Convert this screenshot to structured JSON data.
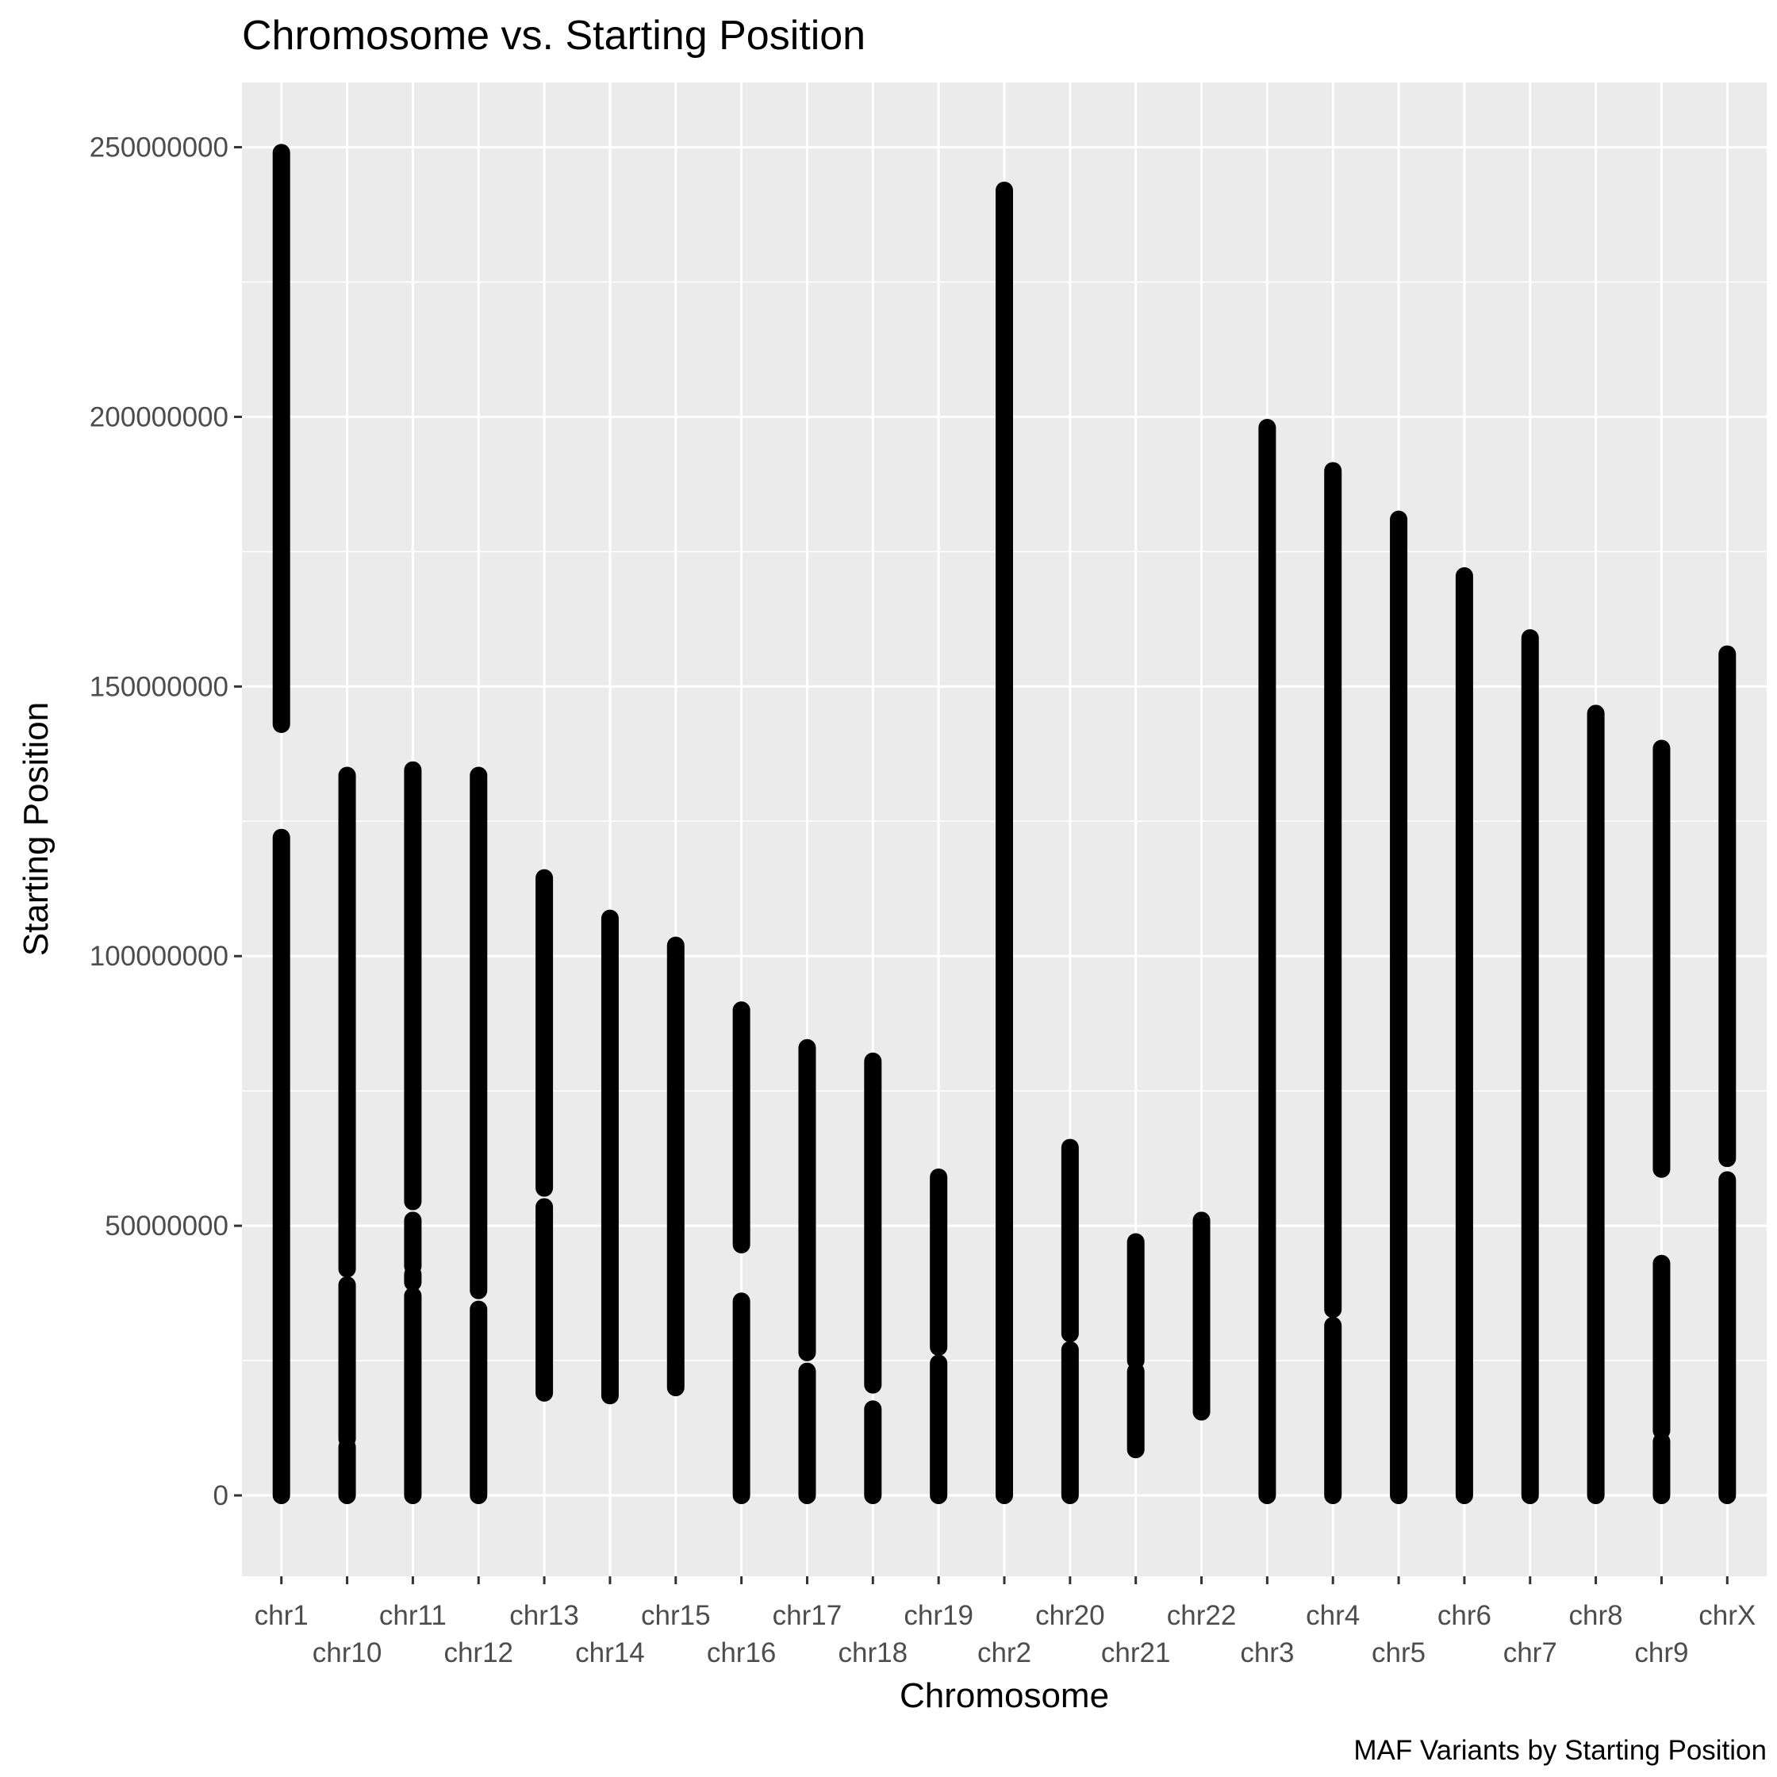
{
  "chart_data": {
    "type": "scatter",
    "title": "Chromosome vs. Starting Position",
    "xlabel": "Chromosome",
    "ylabel": "Starting Position",
    "caption": "MAF Variants by Starting Position",
    "categories": [
      "chr1",
      "chr10",
      "chr11",
      "chr12",
      "chr13",
      "chr14",
      "chr15",
      "chr16",
      "chr17",
      "chr18",
      "chr19",
      "chr2",
      "chr20",
      "chr21",
      "chr22",
      "chr3",
      "chr4",
      "chr5",
      "chr6",
      "chr7",
      "chr8",
      "chr9",
      "chrX"
    ],
    "y_ticks": [
      0,
      50000000,
      100000000,
      150000000,
      200000000,
      250000000
    ],
    "y_tick_labels": [
      "0",
      "50000000",
      "100000000",
      "150000000",
      "200000000",
      "250000000"
    ],
    "ylim": [
      -15000000,
      262000000
    ],
    "grid": true,
    "point_color": "#000000",
    "panel_color": "#ebebeb",
    "grid_color": "#ffffff",
    "series": [
      {
        "category": "chr1",
        "ranges": [
          [
            0,
            122000000
          ],
          [
            143000000,
            249000000
          ]
        ]
      },
      {
        "category": "chr10",
        "ranges": [
          [
            0,
            9000000
          ],
          [
            10500000,
            39000000
          ],
          [
            42000000,
            133500000
          ]
        ]
      },
      {
        "category": "chr11",
        "ranges": [
          [
            0,
            37000000
          ],
          [
            39500000,
            41000000
          ],
          [
            42500000,
            51000000
          ],
          [
            54500000,
            134500000
          ]
        ]
      },
      {
        "category": "chr12",
        "ranges": [
          [
            0,
            34500000
          ],
          [
            38000000,
            133500000
          ]
        ]
      },
      {
        "category": "chr13",
        "ranges": [
          [
            19000000,
            53500000
          ],
          [
            57000000,
            114500000
          ]
        ]
      },
      {
        "category": "chr14",
        "ranges": [
          [
            18500000,
            107000000
          ]
        ]
      },
      {
        "category": "chr15",
        "ranges": [
          [
            20000000,
            102000000
          ]
        ]
      },
      {
        "category": "chr16",
        "ranges": [
          [
            0,
            36000000
          ],
          [
            46500000,
            90000000
          ]
        ]
      },
      {
        "category": "chr17",
        "ranges": [
          [
            0,
            23000000
          ],
          [
            26500000,
            83000000
          ]
        ]
      },
      {
        "category": "chr18",
        "ranges": [
          [
            0,
            16000000
          ],
          [
            20500000,
            80500000
          ]
        ]
      },
      {
        "category": "chr19",
        "ranges": [
          [
            0,
            24500000
          ],
          [
            27500000,
            59000000
          ]
        ]
      },
      {
        "category": "chr2",
        "ranges": [
          [
            0,
            242000000
          ]
        ]
      },
      {
        "category": "chr20",
        "ranges": [
          [
            0,
            27000000
          ],
          [
            30000000,
            64500000
          ]
        ]
      },
      {
        "category": "chr21",
        "ranges": [
          [
            8500000,
            23000000
          ],
          [
            25000000,
            47000000
          ]
        ]
      },
      {
        "category": "chr22",
        "ranges": [
          [
            15500000,
            51000000
          ]
        ]
      },
      {
        "category": "chr3",
        "ranges": [
          [
            0,
            198000000
          ]
        ]
      },
      {
        "category": "chr4",
        "ranges": [
          [
            0,
            31500000
          ],
          [
            34500000,
            190000000
          ]
        ]
      },
      {
        "category": "chr5",
        "ranges": [
          [
            0,
            181000000
          ]
        ]
      },
      {
        "category": "chr6",
        "ranges": [
          [
            0,
            170500000
          ]
        ]
      },
      {
        "category": "chr7",
        "ranges": [
          [
            0,
            159000000
          ]
        ]
      },
      {
        "category": "chr8",
        "ranges": [
          [
            0,
            145000000
          ]
        ]
      },
      {
        "category": "chr9",
        "ranges": [
          [
            0,
            10000000
          ],
          [
            12000000,
            43000000
          ],
          [
            60500000,
            138500000
          ]
        ]
      },
      {
        "category": "chrX",
        "ranges": [
          [
            0,
            58500000
          ],
          [
            62500000,
            156000000
          ]
        ]
      }
    ]
  }
}
